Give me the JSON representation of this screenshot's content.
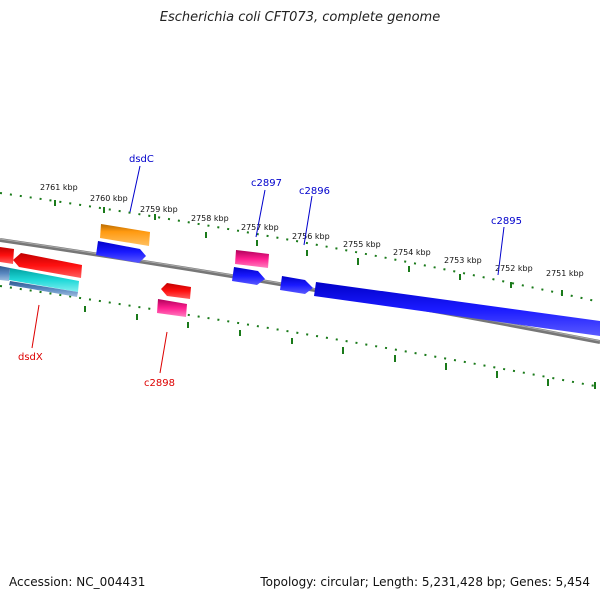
{
  "title": "Escherichia coli CFT073, complete genome",
  "accession_text": "Accession: NC_004431",
  "summary_text": "Topology: circular; Length: 5,231,428 bp; Genes: 5,454",
  "scale_labels": [
    "2761 kbp",
    "2760 kbp",
    "2759 kbp",
    "2758 kbp",
    "2757 kbp",
    "2756 kbp",
    "2755 kbp",
    "2754 kbp",
    "2753 kbp",
    "2752 kbp",
    "2751 kbp"
  ],
  "gene_labels": {
    "forward": [
      "dsdC",
      "c2897",
      "c2896",
      "c2895"
    ],
    "reverse": [
      "dsdX",
      "c2898"
    ]
  },
  "colors": {
    "scale": "#1a7a1a",
    "forward_label": "#0000cc",
    "reverse_label": "#dd0000",
    "backbone": "#808080"
  }
}
